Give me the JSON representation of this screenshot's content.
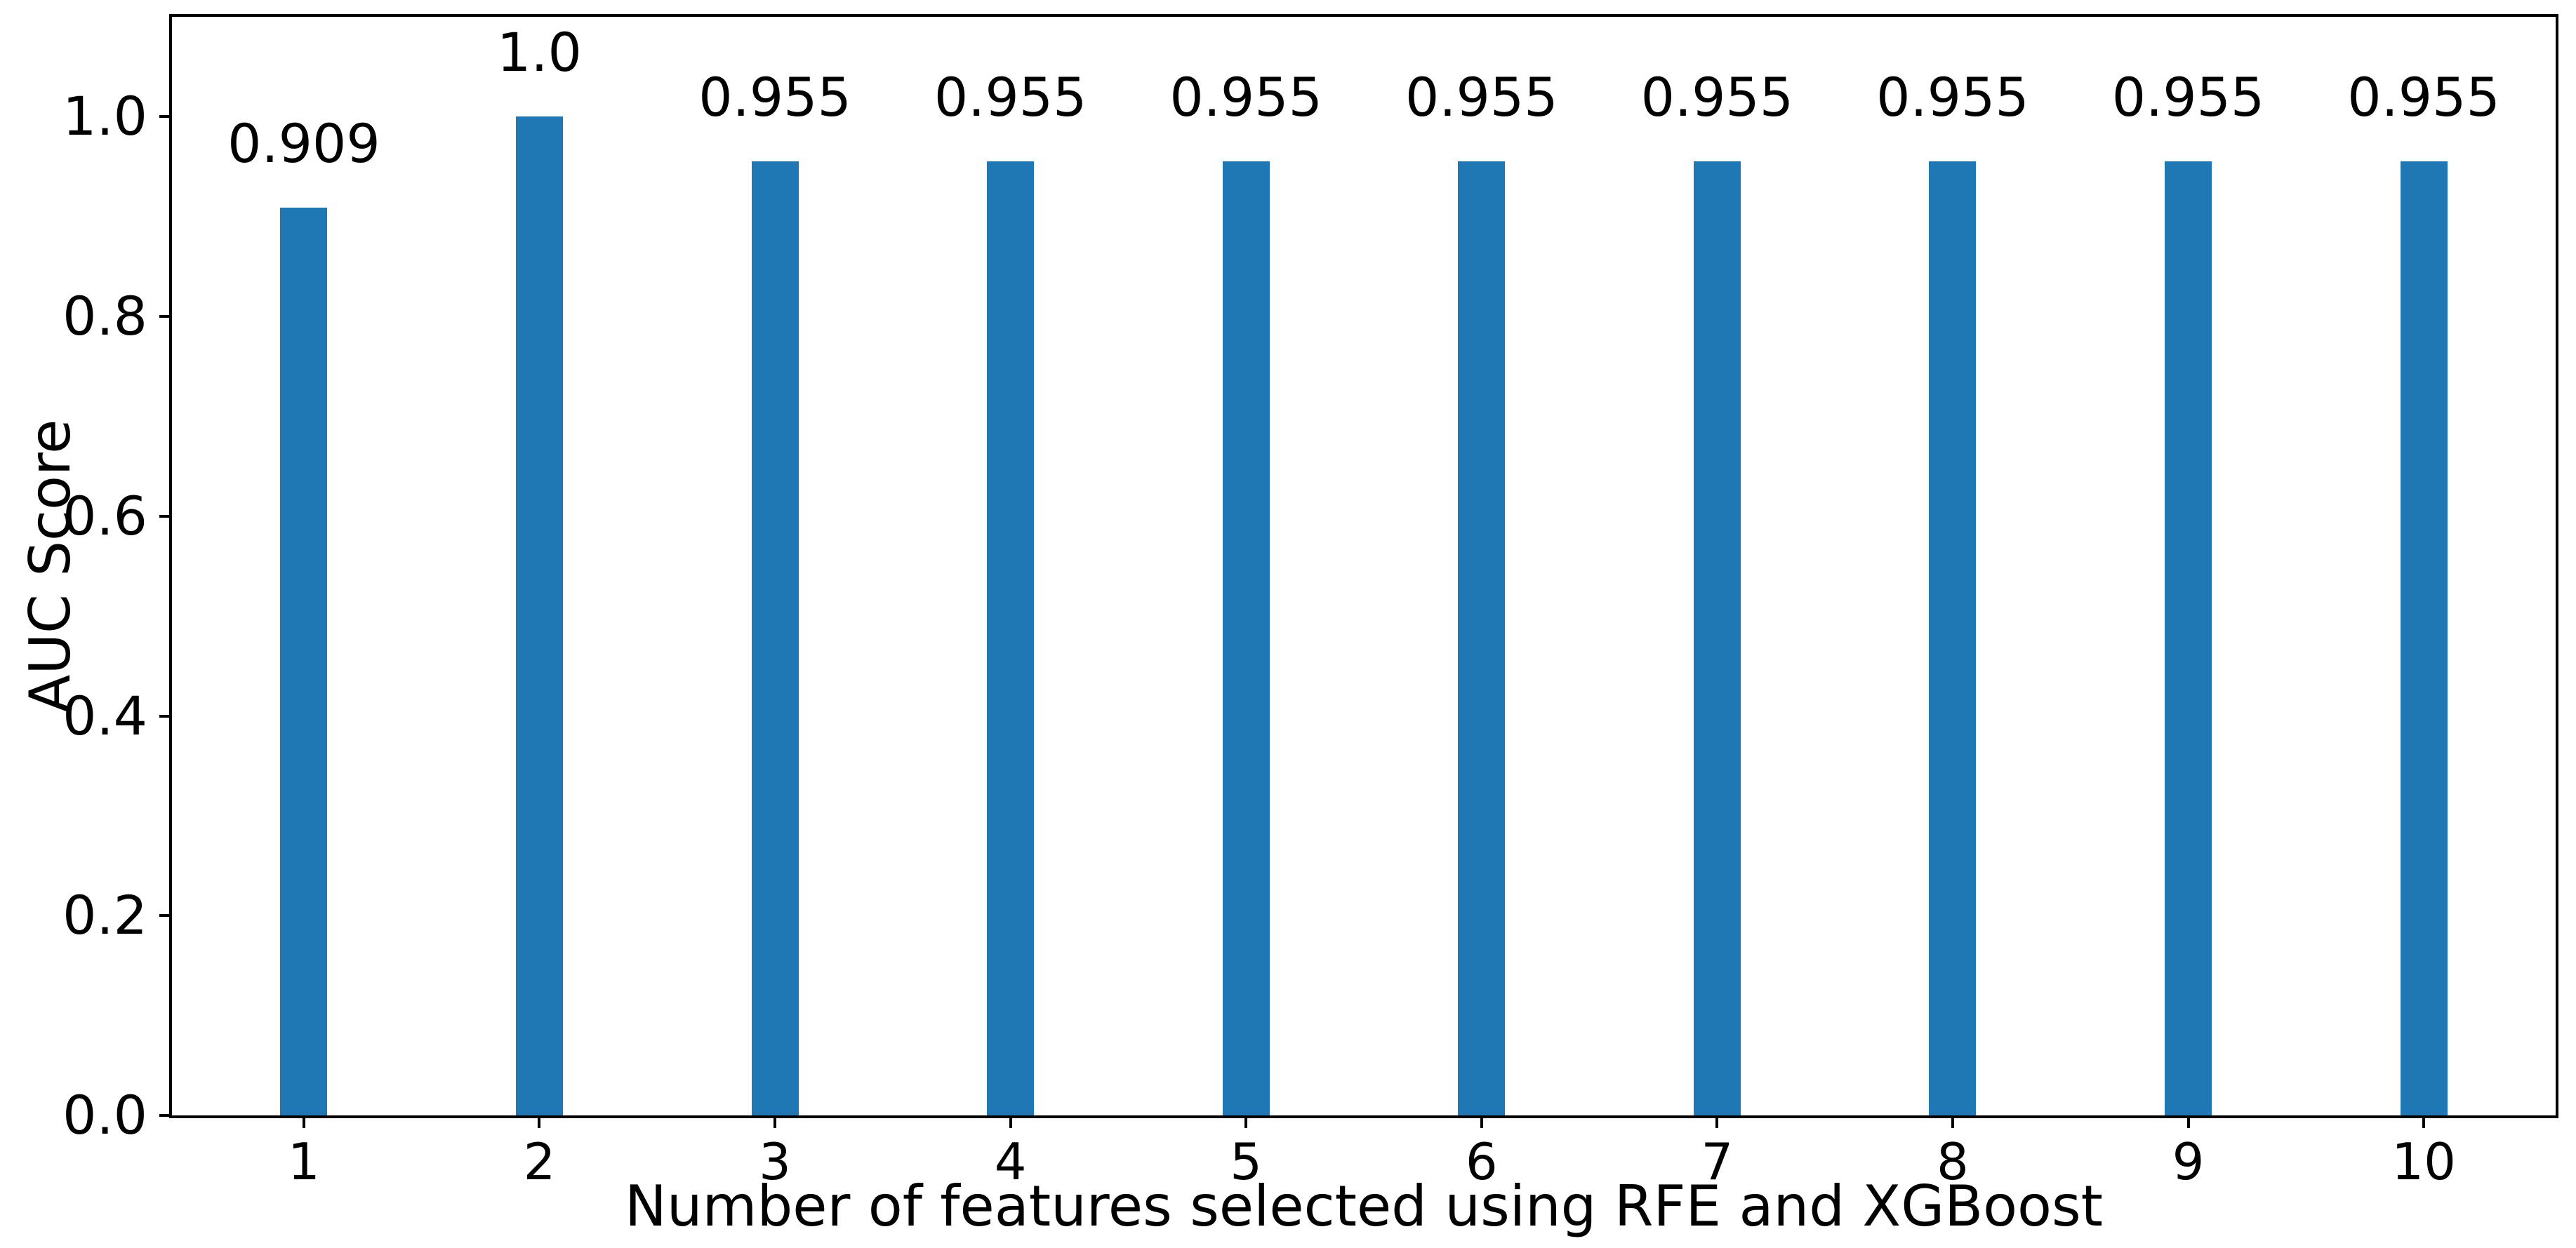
{
  "chart_data": {
    "type": "bar",
    "title": "",
    "xlabel": "Number of features selected using RFE and XGBoost",
    "ylabel": "AUC Score",
    "categories": [
      "1",
      "2",
      "3",
      "4",
      "5",
      "6",
      "7",
      "8",
      "9",
      "10"
    ],
    "x": [
      1,
      2,
      3,
      4,
      5,
      6,
      7,
      8,
      9,
      10
    ],
    "values": [
      0.909,
      1.0,
      0.955,
      0.955,
      0.955,
      0.955,
      0.955,
      0.955,
      0.955,
      0.955
    ],
    "bar_labels": [
      "0.909",
      "1.0",
      "0.955",
      "0.955",
      "0.955",
      "0.955",
      "0.955",
      "0.955",
      "0.955",
      "0.955"
    ],
    "ytick_values": [
      0.0,
      0.2,
      0.4,
      0.6,
      0.8,
      1.0
    ],
    "ytick_labels": [
      "0.0",
      "0.2",
      "0.4",
      "0.6",
      "0.8",
      "1.0"
    ],
    "xlim": [
      0.44,
      10.56
    ],
    "ylim": [
      0,
      1.1
    ],
    "bar_width_data_units": 0.2,
    "bar_color": "#1f77b4",
    "axis_color": "#000000",
    "background_color": "#ffffff",
    "grid": false,
    "legend": "none"
  }
}
